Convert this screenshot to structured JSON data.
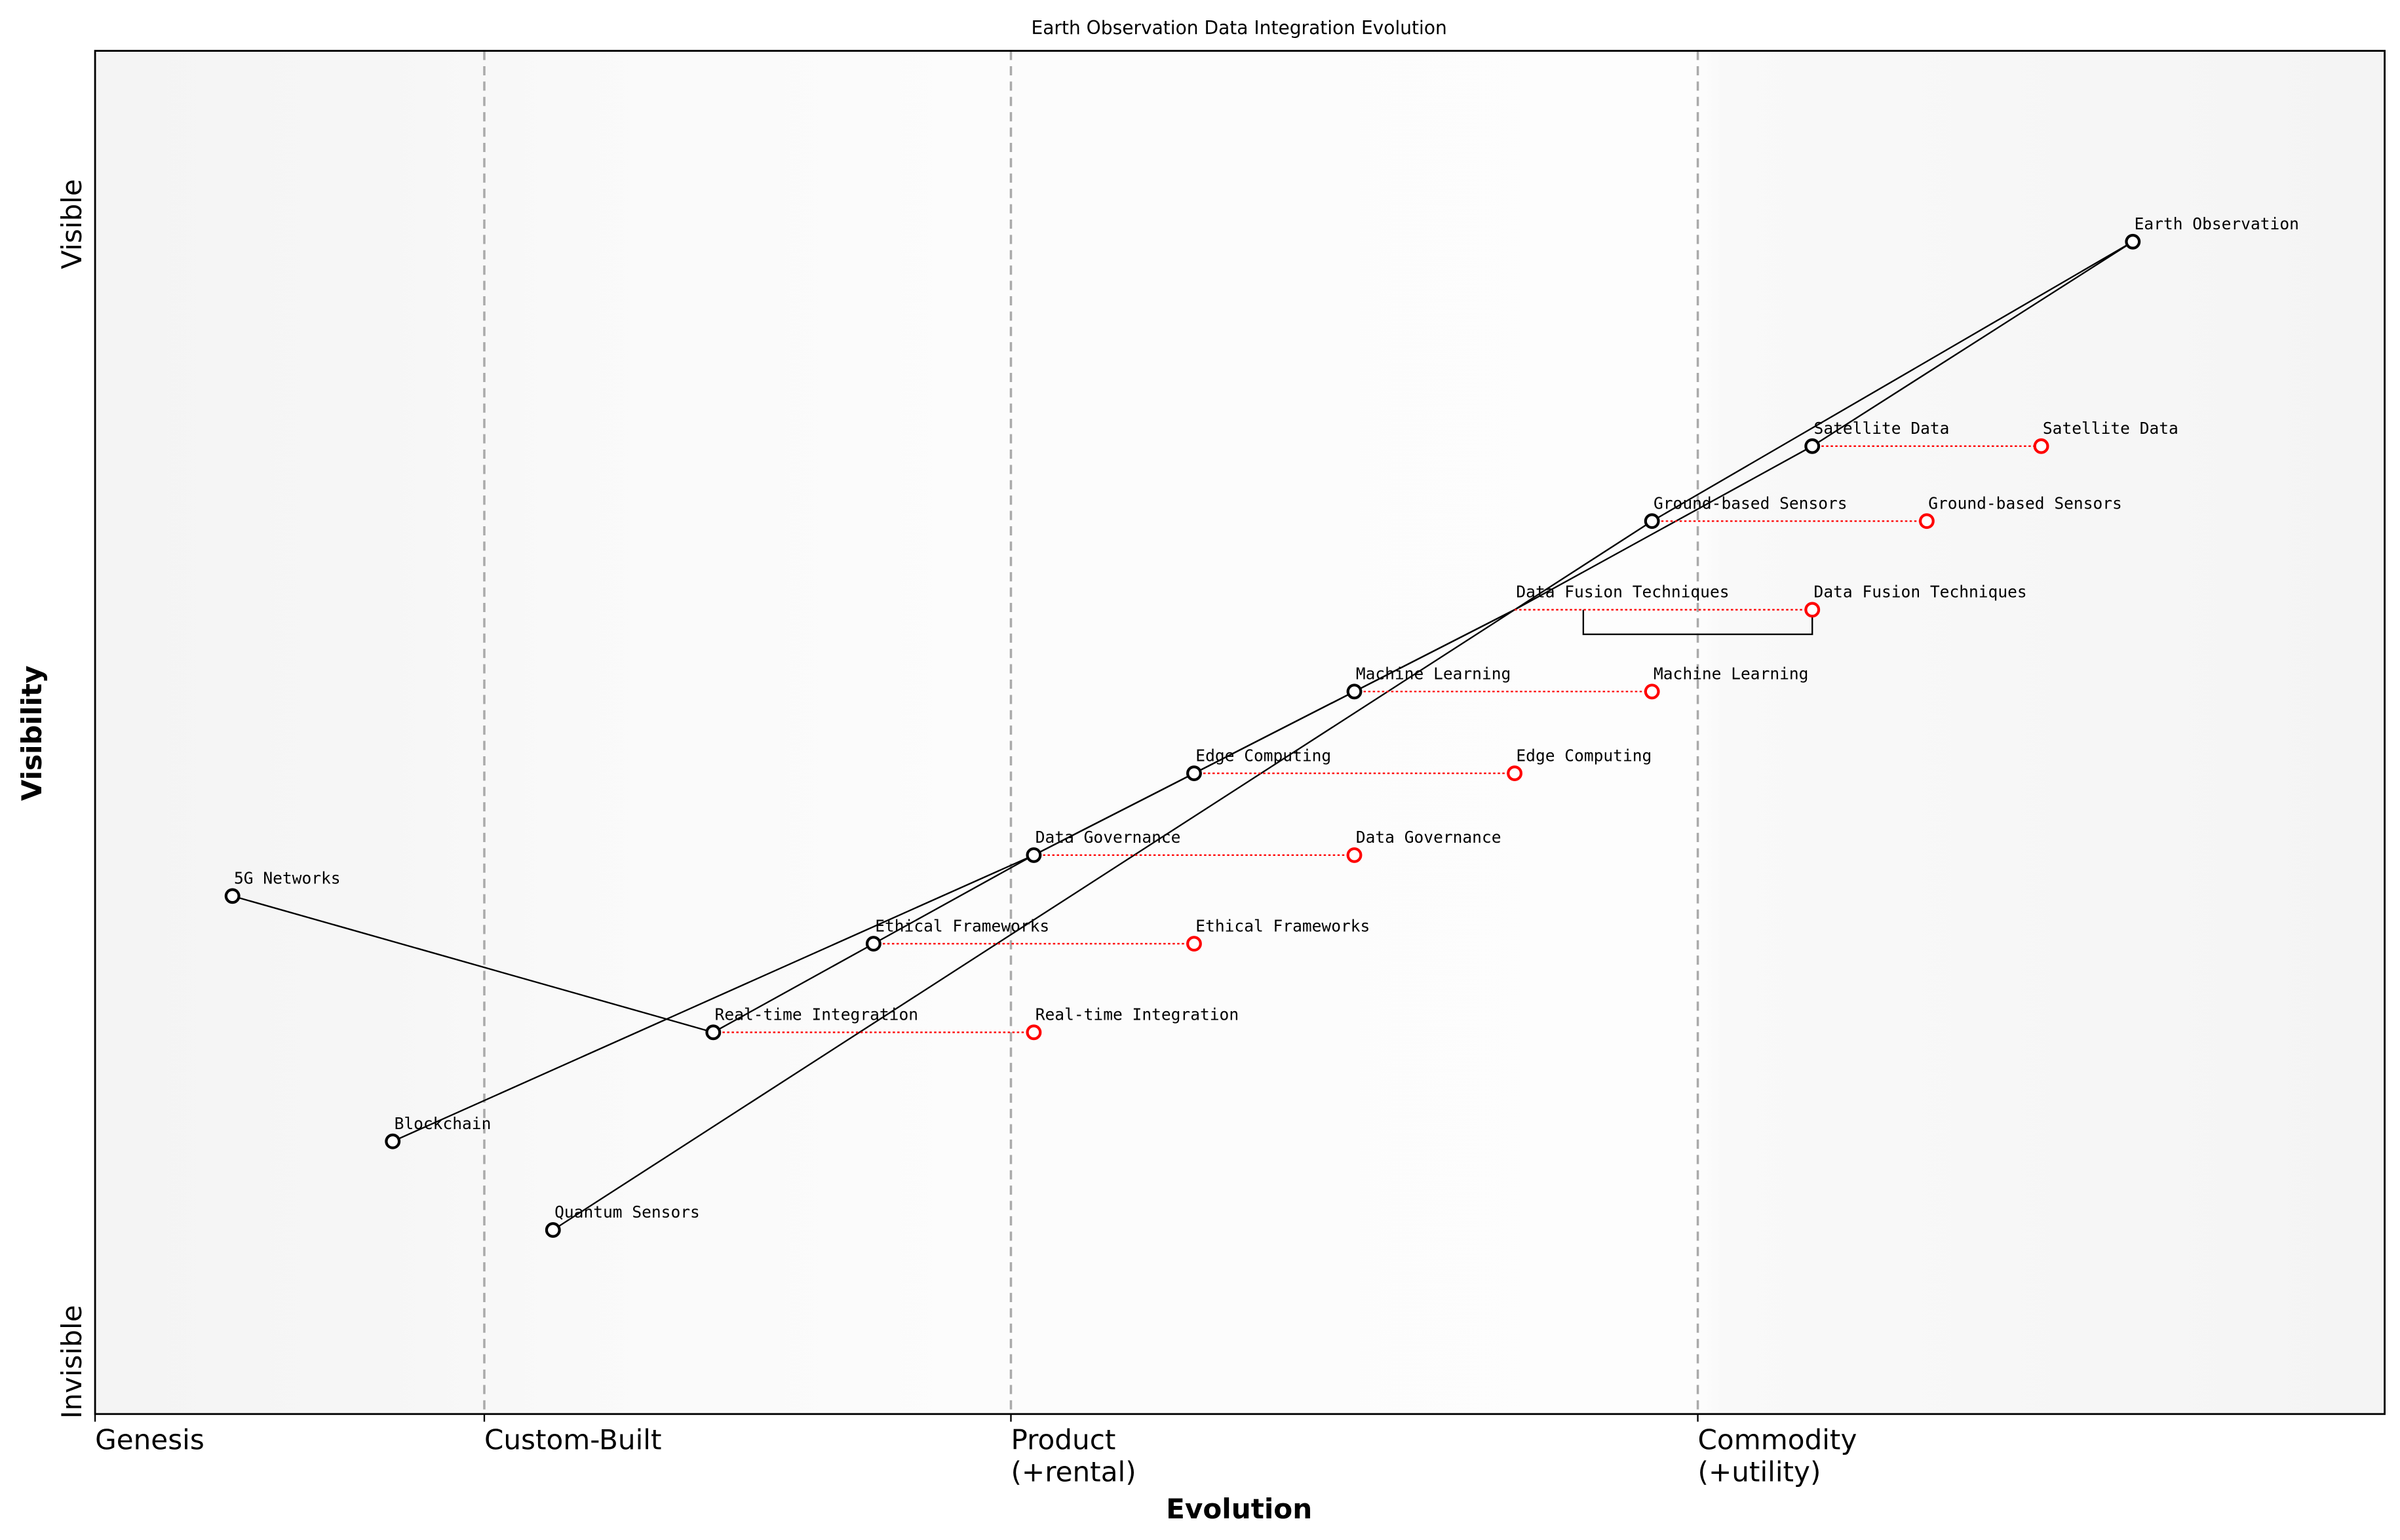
{
  "chart_data": {
    "type": "scatter",
    "subtype": "wardley-map",
    "title": "Earth Observation Data Integration Evolution",
    "xlabel": "Evolution",
    "ylabel": "Visibility",
    "xlim": [
      0,
      1
    ],
    "ylim": [
      0,
      1
    ],
    "grid": false,
    "stage_ticks": [
      {
        "x": 0.0,
        "label": "Genesis"
      },
      {
        "x": 0.17,
        "label": "Custom-Built"
      },
      {
        "x": 0.4,
        "label": "Product\n(+rental)"
      },
      {
        "x": 0.7,
        "label": "Commodity\n(+utility)"
      }
    ],
    "y_labels": {
      "top": "Visible",
      "bottom": "Invisible"
    },
    "colors": {
      "component": "#000000",
      "evolved": "#ff0000",
      "stage_line": "#aaaaaa"
    },
    "components": [
      {
        "name": "Earth Observation",
        "x": 0.89,
        "y": 0.86
      },
      {
        "name": "Satellite Data",
        "x": 0.75,
        "y": 0.71,
        "evolve_to": 0.85
      },
      {
        "name": "Ground-based Sensors",
        "x": 0.68,
        "y": 0.655,
        "evolve_to": 0.8
      },
      {
        "name": "Data Fusion Techniques",
        "x": 0.62,
        "y": 0.59,
        "evolve_to": 0.75,
        "marker": "none"
      },
      {
        "name": "Machine Learning",
        "x": 0.55,
        "y": 0.53,
        "evolve_to": 0.68
      },
      {
        "name": "Edge Computing",
        "x": 0.48,
        "y": 0.47,
        "evolve_to": 0.62
      },
      {
        "name": "Data Governance",
        "x": 0.41,
        "y": 0.41,
        "evolve_to": 0.55
      },
      {
        "name": "Ethical Frameworks",
        "x": 0.34,
        "y": 0.345,
        "evolve_to": 0.48
      },
      {
        "name": "Real-time Integration",
        "x": 0.27,
        "y": 0.28,
        "evolve_to": 0.41
      },
      {
        "name": "5G Networks",
        "x": 0.06,
        "y": 0.38
      },
      {
        "name": "Blockchain",
        "x": 0.13,
        "y": 0.2
      },
      {
        "name": "Quantum Sensors",
        "x": 0.2,
        "y": 0.135
      }
    ],
    "links": [
      [
        "Earth Observation",
        "Satellite Data"
      ],
      [
        "Earth Observation",
        "Ground-based Sensors"
      ],
      [
        "Satellite Data",
        "Data Fusion Techniques"
      ],
      [
        "Ground-based Sensors",
        "Data Fusion Techniques"
      ],
      [
        "Data Fusion Techniques",
        "Machine Learning"
      ],
      [
        "Data Fusion Techniques",
        "Edge Computing"
      ],
      [
        "Data Fusion Techniques",
        "Quantum Sensors"
      ],
      [
        "Machine Learning",
        "Data Governance"
      ],
      [
        "Edge Computing",
        "Data Governance"
      ],
      [
        "Data Governance",
        "Blockchain"
      ],
      [
        "Data Governance",
        "Ethical Frameworks"
      ],
      [
        "Ethical Frameworks",
        "Real-time Integration"
      ],
      [
        "Real-time Integration",
        "5G Networks"
      ]
    ],
    "annotation_box": {
      "x_range": [
        0.65,
        0.75
      ],
      "y_top": 0.59,
      "y_bottom": 0.572
    }
  }
}
